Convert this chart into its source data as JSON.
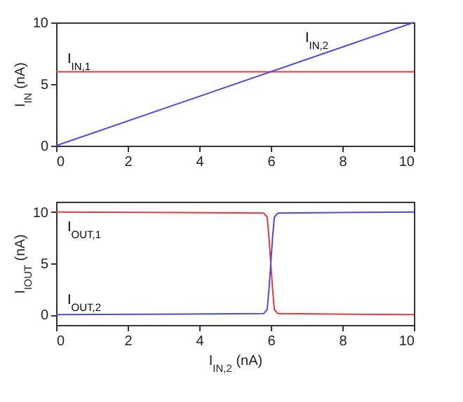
{
  "chart_data": [
    {
      "type": "line",
      "ylabel": "I$_{IN}$ (nA)",
      "xlim": [
        0,
        10
      ],
      "xticks": [
        0,
        2,
        4,
        6,
        8,
        10
      ],
      "ylim": [
        0,
        10
      ],
      "yticks": [
        0,
        5,
        10
      ],
      "grid": false,
      "series": [
        {
          "color": "#e8383c",
          "x": [
            0,
            10
          ],
          "values": [
            6,
            6
          ]
        },
        {
          "color": "#4a4ae8",
          "x": [
            0,
            10
          ],
          "values": [
            0,
            10
          ]
        }
      ],
      "annotations": [
        "I$_{IN,1}$",
        "I$_{IN,2}$"
      ]
    },
    {
      "type": "line",
      "xlabel": "I$_{IN,2}$ (nA)",
      "ylabel": "I$_{IOUT}$ (nA)",
      "xlim": [
        0,
        10
      ],
      "xticks": [
        0,
        2,
        4,
        6,
        8,
        10
      ],
      "ylim": [
        -1,
        11
      ],
      "yticks": [
        0,
        5,
        10
      ],
      "grid": false,
      "series": [
        {
          "color": "#e8383c",
          "x": [
            0,
            5.8,
            5.9,
            5.95,
            6,
            6.05,
            6.1,
            6.2,
            10
          ],
          "values": [
            10,
            9.9,
            9.5,
            7.5,
            5,
            2.5,
            0.5,
            0.1,
            0
          ]
        },
        {
          "color": "#4a4ae8",
          "x": [
            0,
            5.8,
            5.9,
            5.95,
            6,
            6.05,
            6.1,
            6.2,
            10
          ],
          "values": [
            0,
            0.1,
            0.5,
            2.5,
            5,
            7.5,
            9.5,
            9.9,
            10
          ]
        }
      ],
      "annotations": [
        "I$_{OUT,1}$",
        "I$_{OUT,2}$"
      ]
    }
  ]
}
